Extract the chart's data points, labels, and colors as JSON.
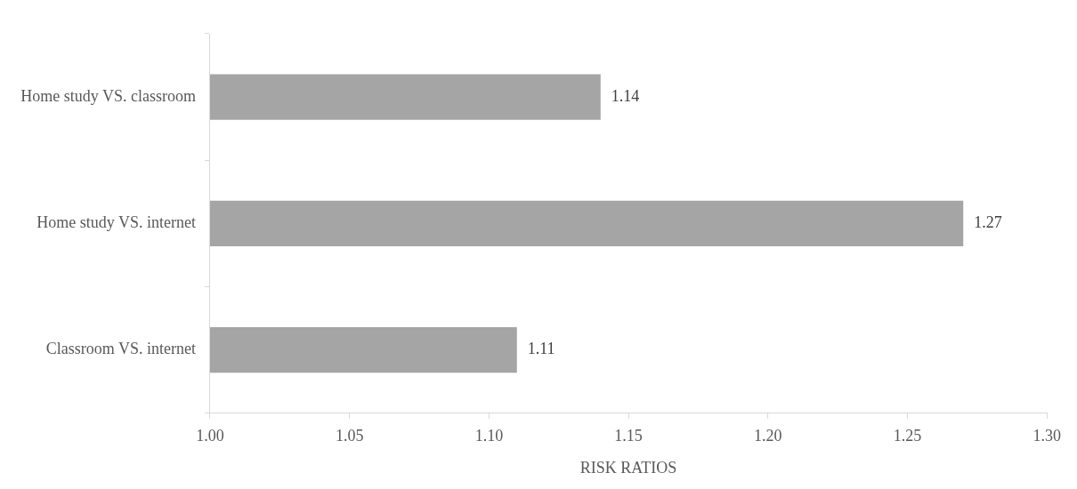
{
  "chart_data": {
    "type": "bar",
    "orientation": "horizontal",
    "categories": [
      "Home study VS. classroom",
      "Home study VS. internet",
      "Classroom VS. internet"
    ],
    "values": [
      1.14,
      1.27,
      1.11
    ],
    "color": "#a5a5a5",
    "xlim": [
      1.0,
      1.3
    ],
    "xticks": [
      {
        "value": 1.0,
        "label": "1.00"
      },
      {
        "value": 1.05,
        "label": "1.05"
      },
      {
        "value": 1.1,
        "label": "1.10"
      },
      {
        "value": 1.15,
        "label": "1.15"
      },
      {
        "value": 1.2,
        "label": "1.20"
      },
      {
        "value": 1.25,
        "label": "1.25"
      },
      {
        "value": 1.3,
        "label": "1.30"
      }
    ],
    "xlabel": "RISK RATIOS",
    "data_labels": true,
    "grid": false,
    "legend": false
  }
}
